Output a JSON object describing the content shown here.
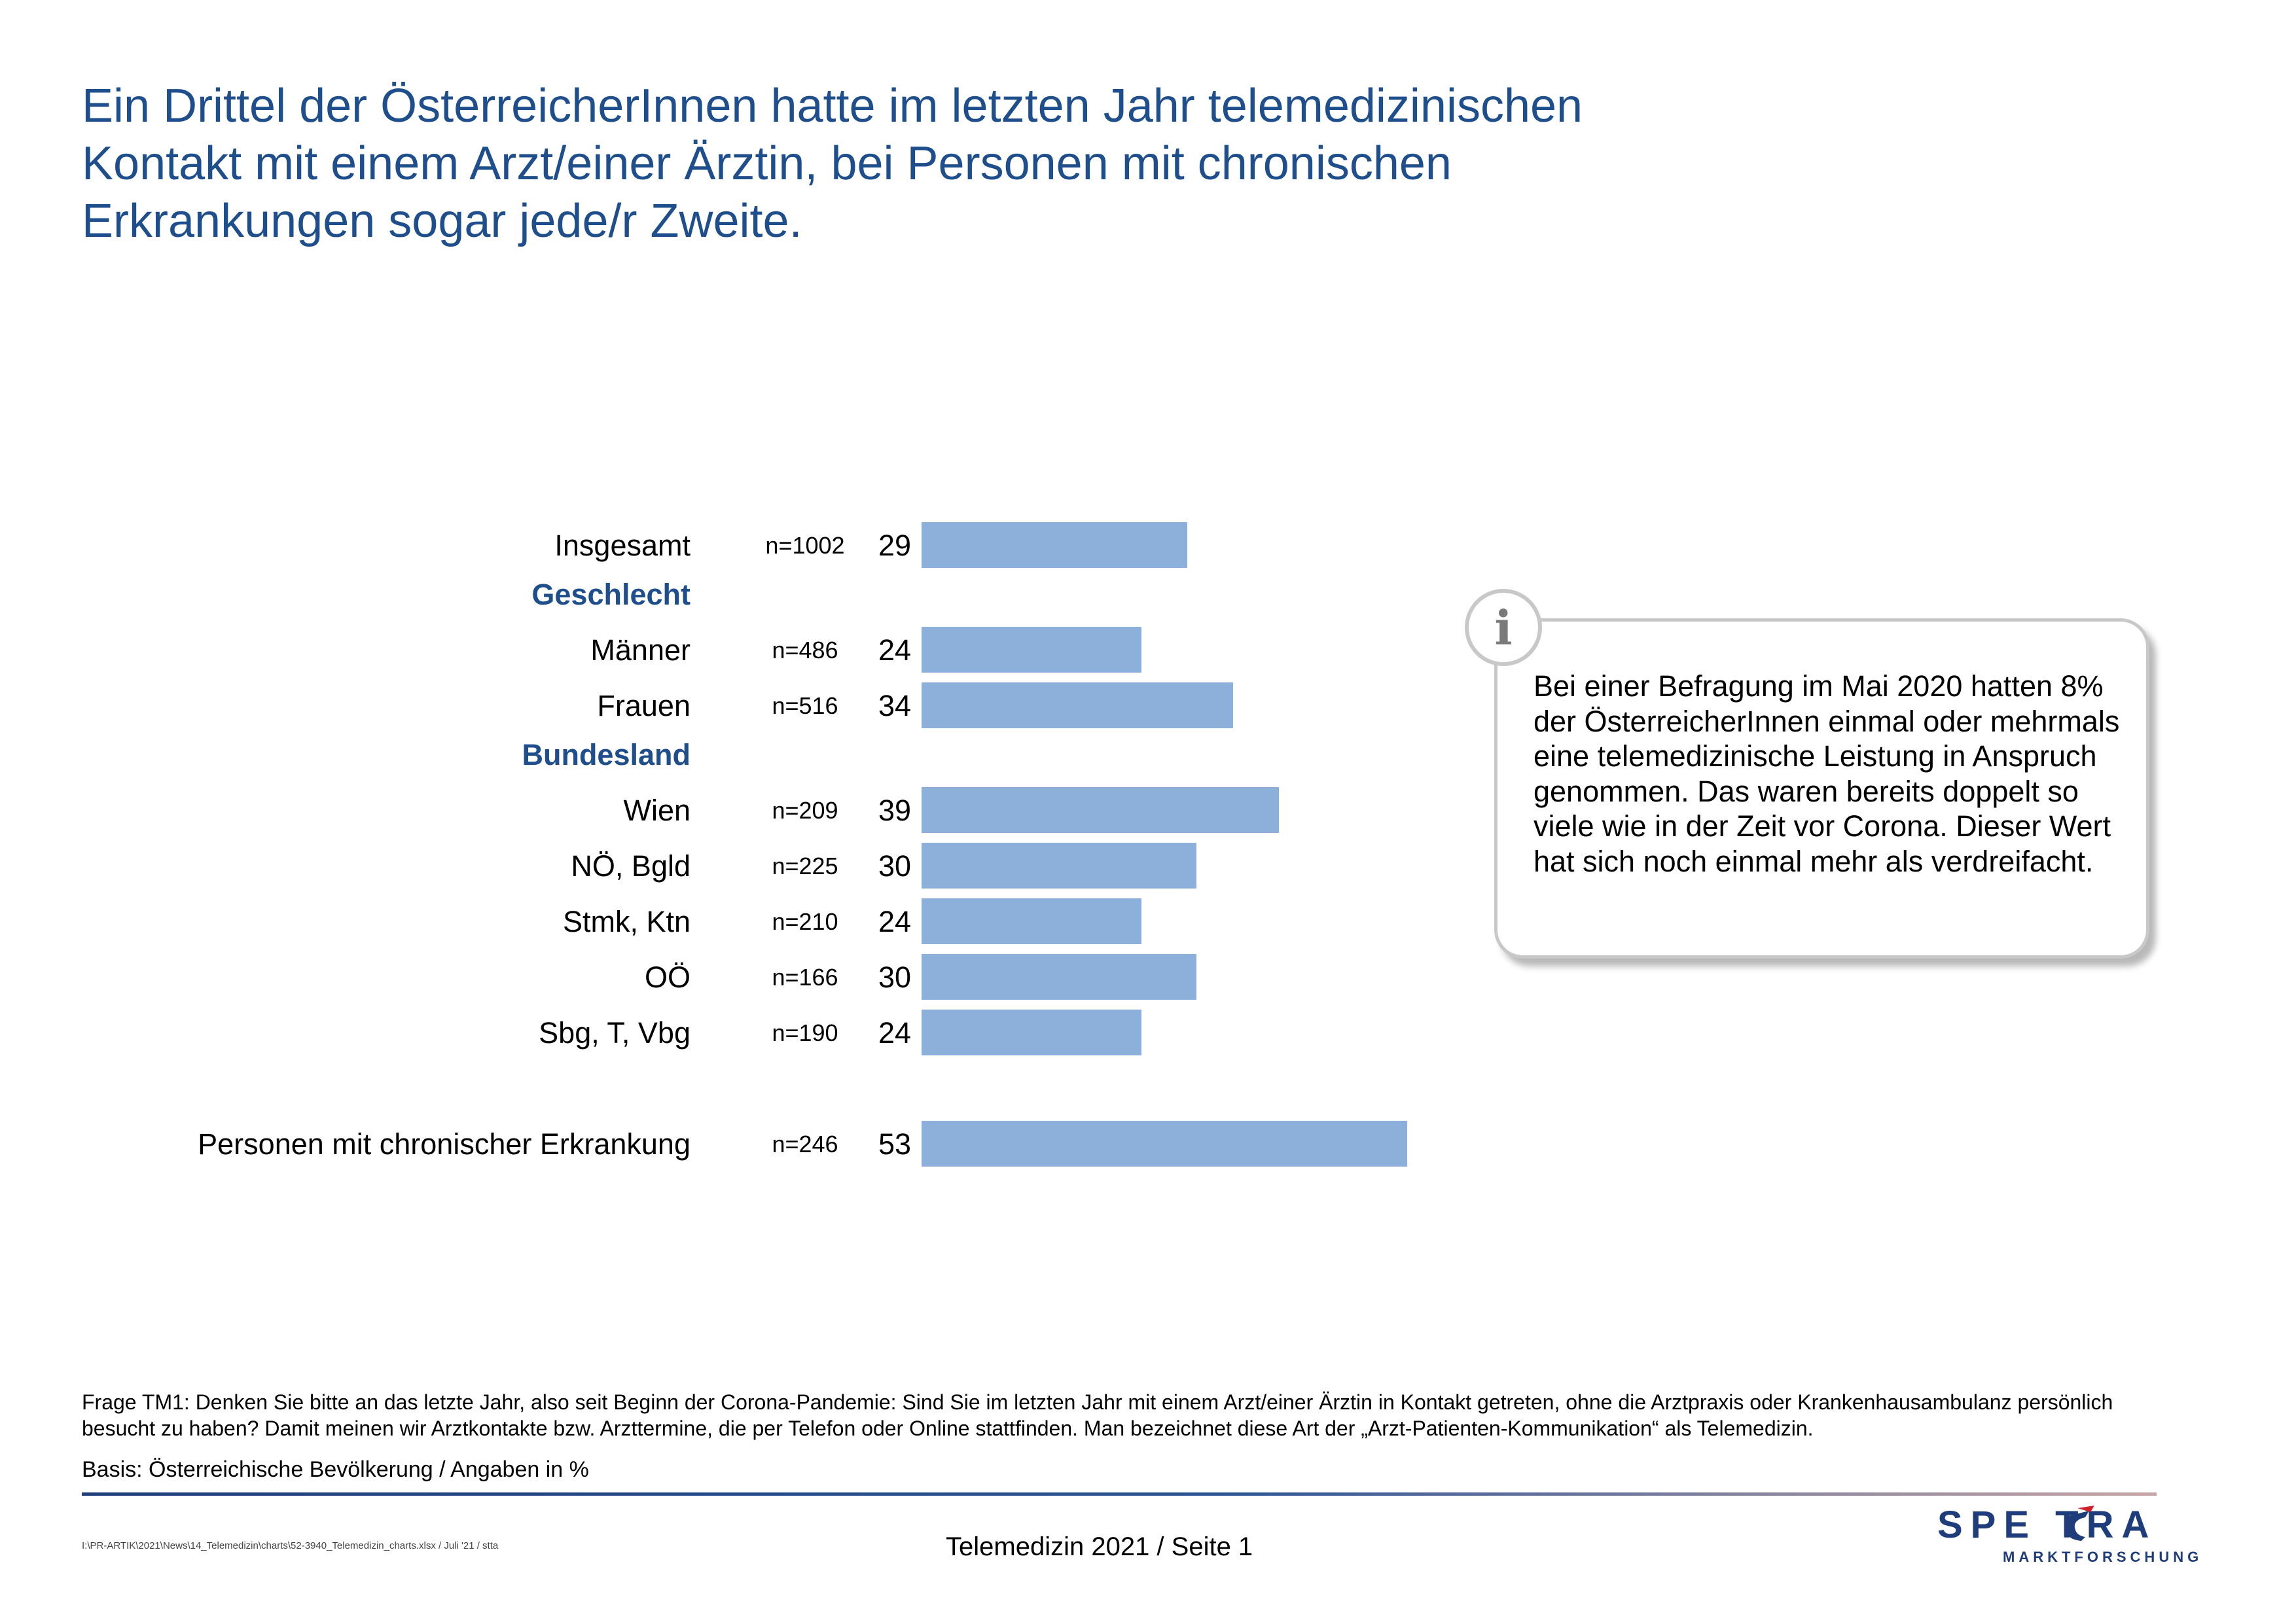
{
  "title_lines": [
    "Ein Drittel der ÖsterreicherInnen hatte im letzten Jahr telemedizinischen",
    "Kontakt mit einem Arzt/einer Ärztin, bei Personen mit chronischen",
    "Erkrankungen sogar jede/r Zweite."
  ],
  "chart_data": {
    "type": "bar",
    "orientation": "horizontal",
    "rows": [
      {
        "label": "Insgesamt",
        "n": "n=1002",
        "value": 29,
        "kind": "item"
      },
      {
        "label": "Geschlecht",
        "kind": "group"
      },
      {
        "label": "Männer",
        "n": "n=486",
        "value": 24,
        "kind": "item"
      },
      {
        "label": "Frauen",
        "n": "n=516",
        "value": 34,
        "kind": "item"
      },
      {
        "label": "Bundesland",
        "kind": "group"
      },
      {
        "label": "Wien",
        "n": "n=209",
        "value": 39,
        "kind": "item"
      },
      {
        "label": "NÖ, Bgld",
        "n": "n=225",
        "value": 30,
        "kind": "item"
      },
      {
        "label": "Stmk, Ktn",
        "n": "n=210",
        "value": 24,
        "kind": "item"
      },
      {
        "label": "OÖ",
        "n": "n=166",
        "value": 30,
        "kind": "item"
      },
      {
        "label": "Sbg, T, Vbg",
        "n": "n=190",
        "value": 24,
        "kind": "item"
      },
      {
        "label": "Personen mit chronischer Erkrankung",
        "n": "n=246",
        "value": 53,
        "kind": "item"
      }
    ],
    "bar_color": "#8db0da",
    "group_label_color": "#1f4e8c",
    "xlim": [
      0,
      100
    ]
  },
  "info": {
    "icon": "info-icon",
    "text": "Bei einer Befragung im Mai 2020 hatten 8% der ÖsterreicherInnen einmal oder mehrmals eine telemedizinische Leistung in Anspruch genommen. Das waren bereits doppelt so viele wie in der Zeit vor Corona. Dieser Wert hat sich noch einmal mehr als verdreifacht."
  },
  "footer": {
    "question": "Frage TM1: Denken Sie bitte an das letzte Jahr, also seit Beginn der Corona-Pandemie: Sind Sie im letzten Jahr mit einem Arzt/einer Ärztin in Kontakt getreten, ohne die Arztpraxis oder Krankenhausambulanz persönlich besucht zu haben? Damit meinen wir Arztkontakte bzw. Arzttermine, die per Telefon oder Online stattfinden. Man bezeichnet diese Art der „Arzt-Patienten-Kommunikation“ als Telemedizin.",
    "basis": "Basis: Österreichische Bevölkerung / Angaben in %",
    "path": "I:\\PR-ARTIK\\2021\\News\\14_Telemedizin\\charts\\52-3940_Telemedizin_charts.xlsx / Juli '21 / stta",
    "center": "Telemedizin 2021  /  Seite  1"
  },
  "logo": {
    "word": "SPECTRA",
    "sub": "MARKTFORSCHUNG",
    "color": "#1f3d7a",
    "accent": "#d0202e"
  }
}
